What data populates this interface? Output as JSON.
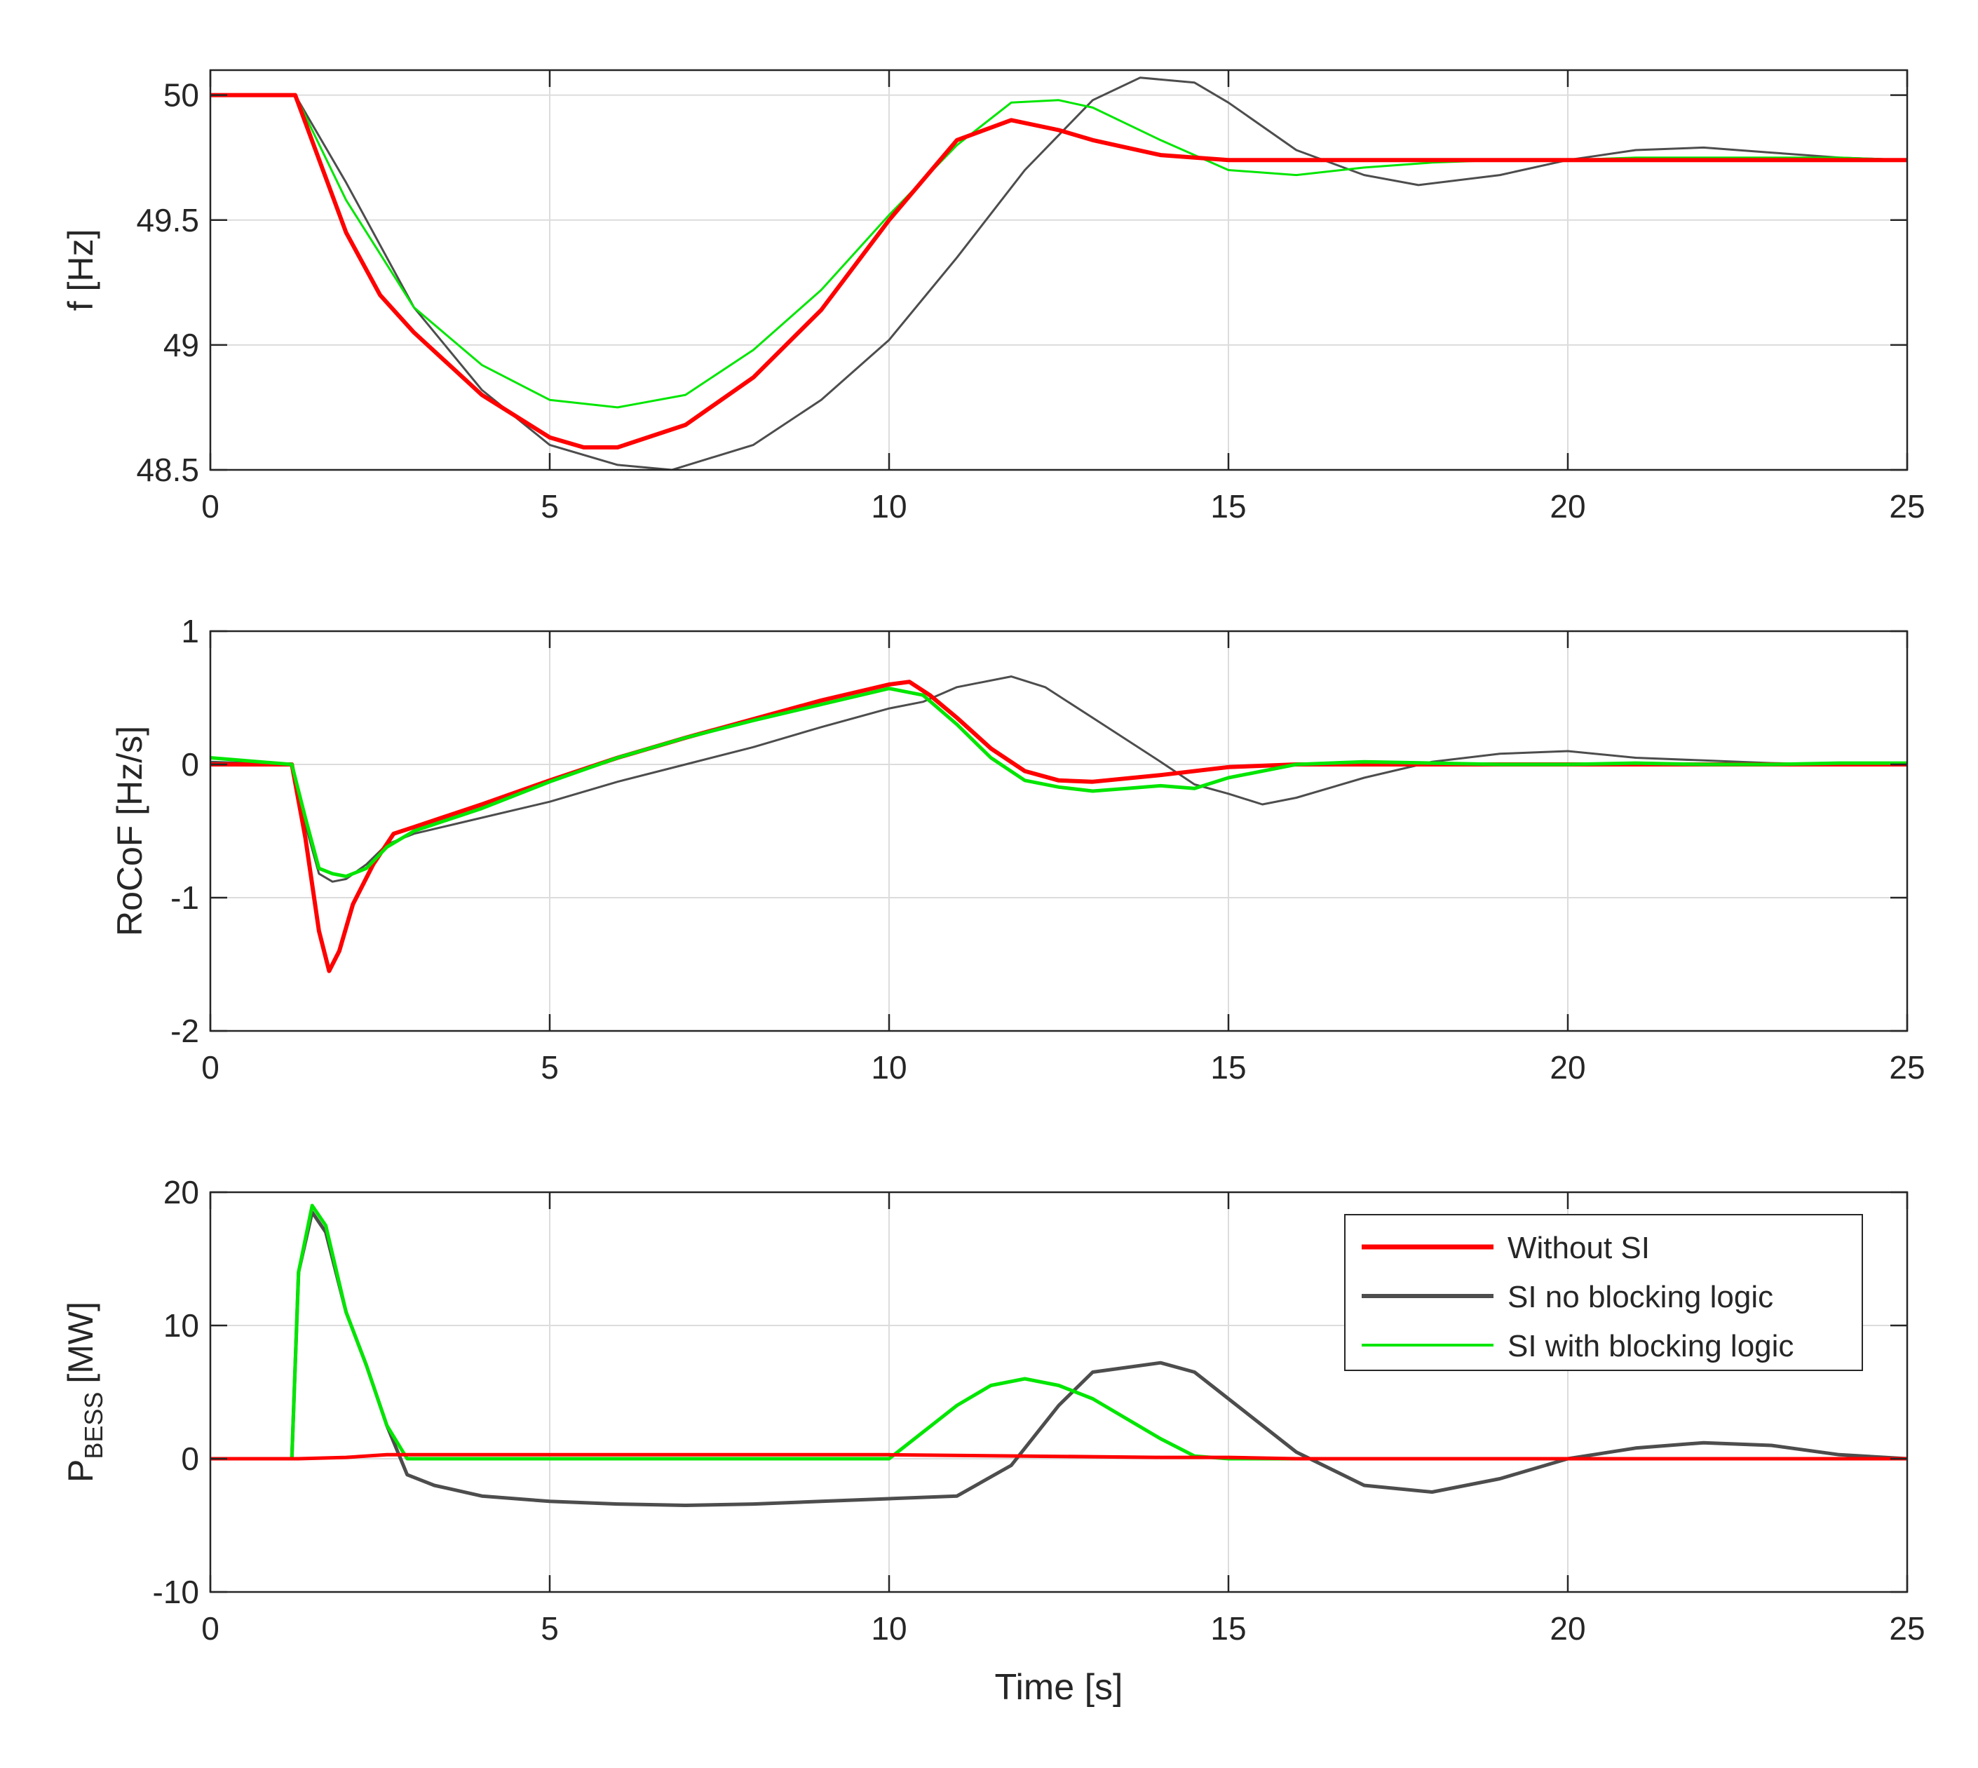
{
  "chart_data": [
    {
      "type": "line",
      "ylabel": "f [Hz]",
      "xlabel": "",
      "xlim": [
        0,
        25
      ],
      "ylim": [
        48.5,
        50.1
      ],
      "xticks": [
        0,
        5,
        10,
        15,
        20,
        25
      ],
      "yticks": [
        48.5,
        49,
        49.5,
        50
      ],
      "xtick_labels": [
        "0",
        "5",
        "10",
        "15",
        "20",
        "25"
      ],
      "ytick_labels": [
        "48.5",
        "49",
        "49.5",
        "50"
      ],
      "grid": true,
      "series": [
        {
          "name": "SI no blocking logic",
          "color": "#4d4d4d",
          "width": 3,
          "x": [
            0,
            1.25,
            2,
            3,
            4,
            5,
            6,
            6.8,
            8,
            9,
            10,
            11,
            12,
            13,
            13.7,
            14.5,
            15,
            16,
            17,
            17.8,
            19,
            20,
            21,
            22,
            23,
            24,
            25
          ],
          "y": [
            50,
            50,
            49.65,
            49.15,
            48.82,
            48.6,
            48.52,
            48.5,
            48.6,
            48.78,
            49.02,
            49.35,
            49.7,
            49.98,
            50.07,
            50.05,
            49.97,
            49.78,
            49.68,
            49.64,
            49.68,
            49.74,
            49.78,
            49.79,
            49.77,
            49.75,
            49.74
          ]
        },
        {
          "name": "SI with blocking logic",
          "color": "#00e600",
          "width": 3,
          "x": [
            0,
            1.25,
            2,
            3,
            4,
            5,
            6,
            7,
            8,
            9,
            10,
            11,
            11.8,
            12.5,
            13,
            14,
            15,
            16,
            17,
            18,
            19,
            20,
            21,
            22,
            23,
            24,
            25
          ],
          "y": [
            50,
            50,
            49.58,
            49.15,
            48.92,
            48.78,
            48.75,
            48.8,
            48.98,
            49.22,
            49.52,
            49.8,
            49.97,
            49.98,
            49.95,
            49.82,
            49.7,
            49.68,
            49.71,
            49.73,
            49.74,
            49.74,
            49.75,
            49.75,
            49.75,
            49.75,
            49.74
          ]
        },
        {
          "name": "Without SI",
          "color": "#ff0000",
          "width": 6,
          "x": [
            0,
            1.25,
            2,
            2.5,
            3,
            4,
            5,
            5.5,
            6,
            7,
            8,
            9,
            10,
            11,
            11.8,
            12.5,
            13,
            14,
            15,
            16,
            17,
            18,
            19,
            20,
            21,
            22,
            23,
            24,
            25
          ],
          "y": [
            50,
            50,
            49.45,
            49.2,
            49.05,
            48.8,
            48.63,
            48.59,
            48.59,
            48.68,
            48.87,
            49.14,
            49.5,
            49.82,
            49.9,
            49.86,
            49.82,
            49.76,
            49.74,
            49.74,
            49.74,
            49.74,
            49.74,
            49.74,
            49.74,
            49.74,
            49.74,
            49.74,
            49.74
          ]
        }
      ]
    },
    {
      "type": "line",
      "ylabel": "RoCoF [Hz/s]",
      "xlabel": "",
      "xlim": [
        0,
        25
      ],
      "ylim": [
        -2,
        1
      ],
      "xticks": [
        0,
        5,
        10,
        15,
        20,
        25
      ],
      "yticks": [
        -2,
        -1,
        0,
        1
      ],
      "xtick_labels": [
        "0",
        "5",
        "10",
        "15",
        "20",
        "25"
      ],
      "ytick_labels": [
        "-2",
        "-1",
        "0",
        "1"
      ],
      "grid": true,
      "series": [
        {
          "name": "SI no blocking logic",
          "color": "#4d4d4d",
          "width": 3,
          "x": [
            0,
            1.2,
            1.4,
            1.6,
            1.8,
            2,
            2.3,
            2.6,
            3,
            4,
            5,
            6,
            7,
            8,
            9,
            10,
            10.5,
            11,
            11.8,
            12.3,
            13,
            14,
            14.5,
            15,
            15.5,
            16,
            17,
            18,
            19,
            20,
            21,
            22,
            23,
            24,
            25
          ],
          "y": [
            0.02,
            0,
            -0.45,
            -0.82,
            -0.88,
            -0.86,
            -0.75,
            -0.6,
            -0.52,
            -0.4,
            -0.28,
            -0.13,
            0,
            0.13,
            0.28,
            0.42,
            0.47,
            0.58,
            0.66,
            0.58,
            0.35,
            0.02,
            -0.15,
            -0.22,
            -0.3,
            -0.25,
            -0.1,
            0.02,
            0.08,
            0.1,
            0.05,
            0.03,
            0.01,
            0,
            0
          ]
        },
        {
          "name": "Without SI",
          "color": "#ff0000",
          "width": 6,
          "x": [
            0,
            1.2,
            1.4,
            1.6,
            1.75,
            1.9,
            2.1,
            2.4,
            2.7,
            3,
            4,
            5,
            6,
            7,
            8,
            9,
            10,
            10.3,
            10.6,
            11,
            11.5,
            12,
            12.5,
            13,
            14,
            15,
            16,
            17,
            18,
            19,
            20,
            21,
            22,
            23,
            24,
            25
          ],
          "y": [
            0,
            0,
            -0.55,
            -1.25,
            -1.55,
            -1.4,
            -1.05,
            -0.75,
            -0.52,
            -0.47,
            -0.3,
            -0.12,
            0.05,
            0.2,
            0.34,
            0.48,
            0.6,
            0.62,
            0.52,
            0.35,
            0.12,
            -0.05,
            -0.12,
            -0.13,
            -0.08,
            -0.02,
            0,
            0,
            0,
            0,
            0,
            0,
            0,
            0,
            0,
            0
          ]
        },
        {
          "name": "SI with blocking logic",
          "color": "#00e600",
          "width": 5,
          "x": [
            0,
            1.2,
            1.4,
            1.6,
            1.8,
            2,
            2.3,
            2.6,
            3,
            4,
            5,
            6,
            7,
            8,
            9,
            10,
            10.5,
            11,
            11.5,
            12,
            12.5,
            13,
            13.5,
            14,
            14.5,
            15,
            16,
            17,
            18,
            19,
            20,
            21,
            22,
            23,
            24,
            25
          ],
          "y": [
            0.05,
            0,
            -0.4,
            -0.78,
            -0.82,
            -0.84,
            -0.78,
            -0.62,
            -0.5,
            -0.33,
            -0.13,
            0.05,
            0.2,
            0.33,
            0.45,
            0.57,
            0.52,
            0.3,
            0.05,
            -0.12,
            -0.17,
            -0.2,
            -0.18,
            -0.16,
            -0.18,
            -0.1,
            0,
            0.02,
            0.01,
            0,
            0,
            0.01,
            0,
            0,
            0.01,
            0.01
          ]
        }
      ]
    },
    {
      "type": "line",
      "ylabel": "P",
      "ylabel_sub": "BESS",
      "ylabel_unit": "[MW]",
      "xlabel": "Time [s]",
      "xlim": [
        0,
        25
      ],
      "ylim": [
        -10,
        20
      ],
      "xticks": [
        0,
        5,
        10,
        15,
        20,
        25
      ],
      "yticks": [
        -10,
        0,
        10,
        20
      ],
      "xtick_labels": [
        "0",
        "5",
        "10",
        "15",
        "20",
        "25"
      ],
      "ytick_labels": [
        "-10",
        "0",
        "10",
        "20"
      ],
      "grid": true,
      "legend_position": "top-right",
      "series": [
        {
          "name": "SI no blocking logic",
          "color": "#4d4d4d",
          "width": 5,
          "x": [
            0,
            1.2,
            1.3,
            1.5,
            1.7,
            2,
            2.3,
            2.6,
            2.9,
            3.3,
            4,
            5,
            6,
            7,
            8,
            9,
            10,
            11,
            11.8,
            12.5,
            13,
            14,
            14.5,
            15,
            16,
            17,
            18,
            19,
            20,
            21,
            22,
            23,
            24,
            25
          ],
          "y": [
            0,
            0,
            14,
            18.5,
            17,
            11,
            7,
            2.5,
            -1.2,
            -2,
            -2.8,
            -3.2,
            -3.4,
            -3.5,
            -3.4,
            -3.2,
            -3,
            -2.8,
            -0.5,
            4,
            6.5,
            7.2,
            6.5,
            4.5,
            0.5,
            -2,
            -2.5,
            -1.5,
            0,
            0.8,
            1.2,
            1,
            0.3,
            0
          ]
        },
        {
          "name": "SI with blocking logic",
          "color": "#00e600",
          "width": 5,
          "x": [
            0,
            1.2,
            1.3,
            1.5,
            1.7,
            2,
            2.3,
            2.6,
            2.9,
            3.3,
            4,
            5,
            6,
            7,
            8,
            9,
            10,
            10.5,
            11,
            11.5,
            12,
            12.5,
            13,
            13.5,
            14,
            14.5,
            15,
            16,
            17,
            18,
            19,
            20,
            21,
            22,
            23,
            24,
            25
          ],
          "y": [
            0,
            0,
            14,
            19,
            17.5,
            11,
            7,
            2.5,
            0,
            0,
            0,
            0,
            0,
            0,
            0,
            0,
            0,
            2,
            4,
            5.5,
            6,
            5.5,
            4.5,
            3,
            1.5,
            0.2,
            0,
            0,
            0,
            0,
            0,
            0,
            0,
            0,
            0,
            0,
            0
          ]
        },
        {
          "name": "Without SI",
          "color": "#ff0000",
          "width": 5,
          "x": [
            0,
            1.3,
            2,
            2.6,
            4,
            6,
            8,
            10,
            12,
            14,
            15,
            16,
            18,
            20,
            22,
            25
          ],
          "y": [
            0,
            0,
            0.1,
            0.3,
            0.3,
            0.3,
            0.3,
            0.3,
            0.2,
            0.1,
            0.1,
            0,
            0,
            0,
            0,
            0
          ]
        }
      ],
      "legend": [
        "Without SI",
        "SI no blocking logic",
        "SI with blocking logic"
      ]
    }
  ]
}
